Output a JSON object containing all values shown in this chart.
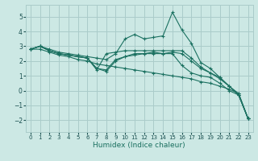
{
  "xlabel": "Humidex (Indice chaleur)",
  "bg_color": "#cce8e4",
  "grid_color": "#aaccca",
  "line_color": "#1a7060",
  "xlim": [
    -0.5,
    23.5
  ],
  "ylim": [
    -2.8,
    5.8
  ],
  "xticks": [
    0,
    1,
    2,
    3,
    4,
    5,
    6,
    7,
    8,
    9,
    10,
    11,
    12,
    13,
    14,
    15,
    16,
    17,
    18,
    19,
    20,
    21,
    22,
    23
  ],
  "yticks": [
    -2,
    -1,
    0,
    1,
    2,
    3,
    4,
    5
  ],
  "series": [
    {
      "x": [
        0,
        1,
        2,
        3,
        4,
        5,
        6,
        7,
        8,
        9,
        10,
        11,
        12,
        13,
        14,
        15,
        16,
        17,
        18,
        19,
        20,
        21,
        22,
        23
      ],
      "y": [
        2.8,
        3.0,
        2.8,
        2.6,
        2.5,
        2.4,
        2.3,
        2.2,
        2.1,
        2.5,
        3.5,
        3.8,
        3.5,
        3.6,
        3.7,
        5.3,
        4.1,
        3.2,
        1.9,
        1.5,
        0.9,
        0.3,
        -0.3,
        -1.9
      ]
    },
    {
      "x": [
        0,
        1,
        2,
        3,
        4,
        5,
        6,
        7,
        8,
        9,
        10,
        11,
        12,
        13,
        14,
        15,
        16,
        17,
        18,
        19,
        20,
        21,
        22,
        23
      ],
      "y": [
        2.8,
        2.8,
        2.6,
        2.4,
        2.3,
        2.1,
        2.0,
        1.8,
        1.7,
        1.6,
        1.5,
        1.4,
        1.3,
        1.2,
        1.1,
        1.0,
        0.9,
        0.8,
        0.6,
        0.5,
        0.3,
        0.1,
        -0.2,
        -1.9
      ]
    },
    {
      "x": [
        0,
        1,
        2,
        3,
        4,
        5,
        6,
        7,
        8,
        9,
        10,
        11,
        12,
        13,
        14,
        15,
        16,
        17,
        18,
        19,
        20,
        21,
        22,
        23
      ],
      "y": [
        2.8,
        3.0,
        2.7,
        2.5,
        2.4,
        2.3,
        2.2,
        1.5,
        1.4,
        2.1,
        2.3,
        2.5,
        2.5,
        2.6,
        2.5,
        2.6,
        2.5,
        2.0,
        1.5,
        1.2,
        0.8,
        0.3,
        -0.3,
        -1.9
      ]
    },
    {
      "x": [
        0,
        1,
        2,
        3,
        4,
        5,
        6,
        7,
        8,
        9,
        10,
        11,
        12,
        13,
        14,
        15,
        16,
        17,
        18,
        19,
        20,
        21,
        22,
        23
      ],
      "y": [
        2.8,
        3.0,
        2.7,
        2.5,
        2.4,
        2.3,
        2.2,
        1.5,
        1.3,
        2.0,
        2.3,
        2.4,
        2.5,
        2.5,
        2.5,
        2.5,
        1.7,
        1.2,
        1.0,
        0.9,
        0.5,
        0.0,
        -0.3,
        -1.9
      ]
    },
    {
      "x": [
        0,
        1,
        2,
        3,
        4,
        5,
        6,
        7,
        8,
        9,
        10,
        11,
        12,
        13,
        14,
        15,
        16,
        17,
        18,
        19,
        20,
        21,
        22,
        23
      ],
      "y": [
        2.8,
        3.0,
        2.7,
        2.5,
        2.4,
        2.3,
        2.2,
        1.4,
        2.5,
        2.6,
        2.7,
        2.7,
        2.7,
        2.7,
        2.7,
        2.7,
        2.7,
        2.2,
        1.6,
        1.2,
        0.9,
        0.3,
        -0.2,
        -1.9
      ]
    }
  ]
}
